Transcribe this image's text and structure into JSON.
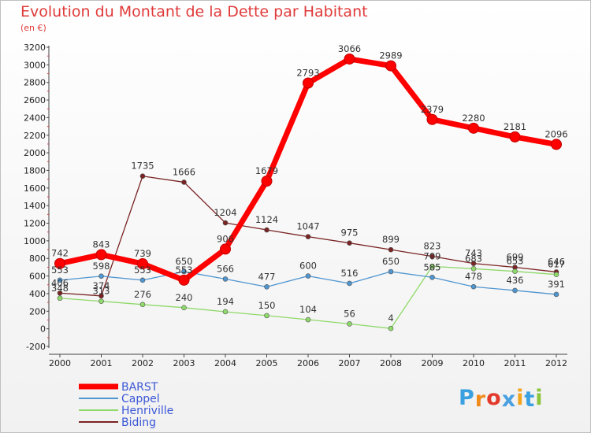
{
  "chart_data": {
    "type": "line",
    "title": "Evolution du Montant de la Dette par Habitant",
    "subtitle": "(en €)",
    "x": [
      "2000",
      "2001",
      "2002",
      "2003",
      "2004",
      "2005",
      "2006",
      "2007",
      "2008",
      "2009",
      "2010",
      "2011",
      "2012"
    ],
    "yticks": [
      "-200",
      "0",
      "200",
      "400",
      "600",
      "800",
      "1000",
      "1200",
      "1400",
      "1600",
      "1800",
      "2000",
      "2200",
      "2400",
      "2600",
      "2800",
      "3000",
      "3200"
    ],
    "ylim": [
      -200,
      3200
    ],
    "grid": false,
    "legend_position": "bottom-left",
    "series": [
      {
        "name": "BARST",
        "color": "#ff0000",
        "values": [
          742,
          843,
          739,
          553,
          906,
          1679,
          2793,
          3066,
          2989,
          2379,
          2280,
          2181,
          2096
        ],
        "labels": [
          "742",
          "843",
          "739",
          "553",
          "906",
          "1679",
          "2793",
          "3066",
          "2989",
          "2379",
          "2280",
          "2181",
          "2096"
        ]
      },
      {
        "name": "Cappel",
        "color": "#4f95cf",
        "values": [
          553,
          598,
          553,
          650,
          566,
          477,
          600,
          516,
          650,
          585,
          478,
          436,
          391
        ],
        "labels": [
          "553",
          "598",
          "553",
          "650",
          "566",
          "477",
          "600",
          "516",
          "650",
          "585",
          "478",
          "436",
          "391"
        ]
      },
      {
        "name": "Henriville",
        "color": "#8fd96a",
        "values": [
          348,
          313,
          276,
          240,
          194,
          150,
          104,
          56,
          4,
          709,
          683,
          653,
          617
        ],
        "labels": [
          "348",
          "313",
          "276",
          "240",
          "194",
          "150",
          "104",
          "56",
          "4",
          "709",
          "683",
          "653",
          "617"
        ]
      },
      {
        "name": "Biding",
        "color": "#7a2323",
        "values": [
          406,
          374,
          1735,
          1666,
          1204,
          1124,
          1047,
          975,
          899,
          823,
          743,
          699,
          646
        ],
        "labels": [
          "406",
          "374",
          "1735",
          "1666",
          "1204",
          "1124",
          "1047",
          "975",
          "899",
          "823",
          "743",
          "699",
          "646"
        ]
      }
    ]
  },
  "brand": {
    "name": "Proxiti",
    "letters": [
      "P",
      "r",
      "o",
      "x",
      "i",
      "t",
      "i"
    ],
    "colors": [
      "#3aa0e0",
      "#f08a1c",
      "#e33b2b",
      "#4aa0e0",
      "#f2a51c",
      "#3aa0e0",
      "#8cc43c"
    ]
  }
}
